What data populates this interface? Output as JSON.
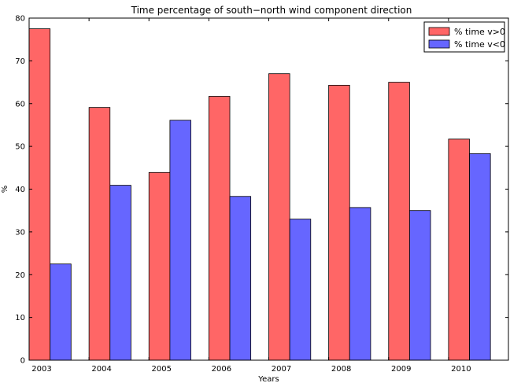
{
  "chart_data": {
    "type": "bar",
    "title": "Time percentage of south−north wind component direction",
    "xlabel": "Years",
    "ylabel": "%",
    "ylim": [
      0,
      80
    ],
    "yticks": [
      0,
      10,
      20,
      30,
      40,
      50,
      60,
      70,
      80
    ],
    "categories": [
      "2003",
      "2004",
      "2005",
      "2006",
      "2007",
      "2008",
      "2009",
      "2010"
    ],
    "series": [
      {
        "name": "% time v>0",
        "color": "#ff6666",
        "values": [
          77.5,
          59.1,
          43.9,
          61.7,
          67.0,
          64.3,
          65.0,
          51.7
        ]
      },
      {
        "name": "% time v<0",
        "color": "#6666ff",
        "values": [
          22.5,
          40.9,
          56.1,
          38.3,
          33.0,
          35.7,
          35.0,
          48.3
        ]
      }
    ],
    "grid": false,
    "legend": "top-right"
  }
}
